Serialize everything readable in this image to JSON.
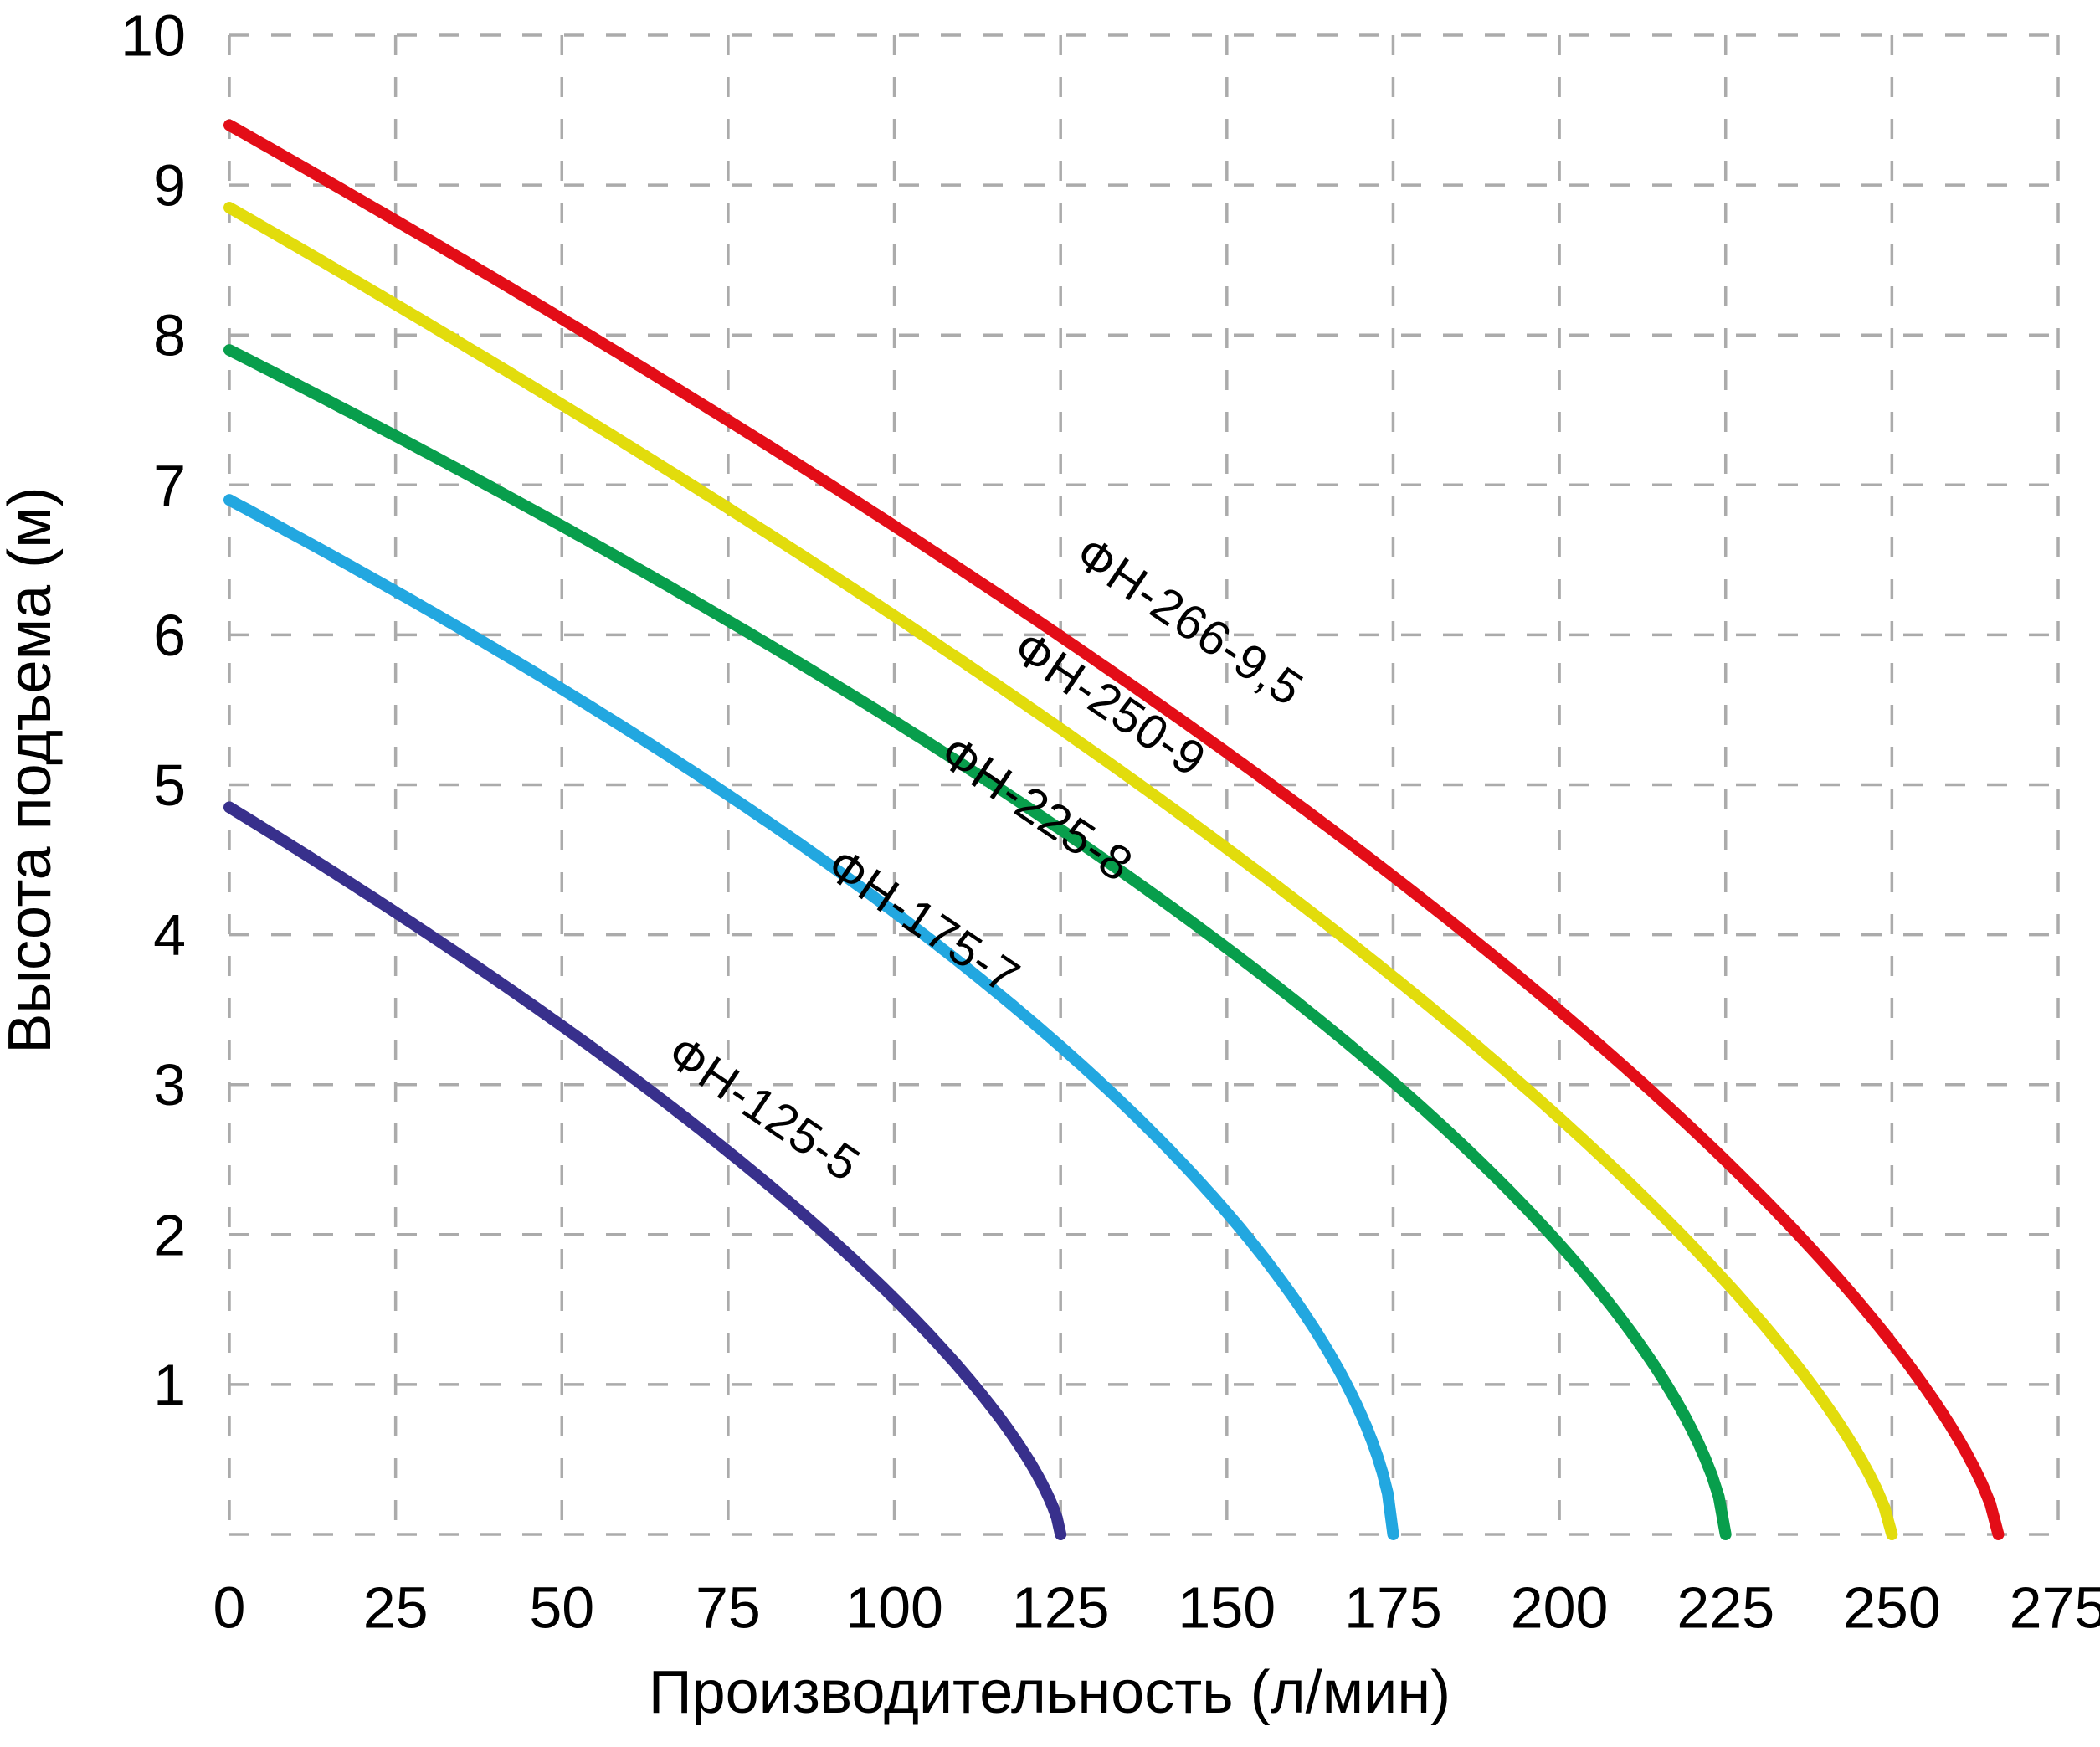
{
  "chart_data": {
    "type": "line",
    "title": "",
    "xlabel": "Производительность (л/мин)",
    "ylabel": "Высота подъема (м)",
    "xlim": [
      0,
      275
    ],
    "ylim": [
      0,
      10
    ],
    "x_ticks": [
      0,
      25,
      50,
      75,
      100,
      125,
      150,
      175,
      200,
      225,
      250,
      275
    ],
    "y_ticks": [
      1,
      2,
      3,
      4,
      5,
      6,
      7,
      8,
      9,
      10
    ],
    "grid": "dashed",
    "grid_color": "#ababab",
    "background_color": "#ffffff",
    "legend_position": "labels-on-curves",
    "series": [
      {
        "name": "ФН-266-9,5",
        "slug": "fn-266-9-5",
        "color": "#e30d17",
        "max_head_m": 9.4,
        "max_flow_lmin": 266,
        "curve_exponent": 0.71,
        "points": [
          [
            0,
            9.4
          ],
          [
            25,
            8.8
          ],
          [
            50,
            8.1
          ],
          [
            75,
            7.4
          ],
          [
            100,
            6.7
          ],
          [
            125,
            6.0
          ],
          [
            150,
            5.2
          ],
          [
            175,
            4.4
          ],
          [
            200,
            3.5
          ],
          [
            225,
            2.5
          ],
          [
            250,
            1.3
          ],
          [
            266,
            0
          ]
        ],
        "label": {
          "q": 143,
          "h": 6.0,
          "angle_deg": 34
        }
      },
      {
        "name": "ФН-250-9",
        "slug": "fn-250-9",
        "color": "#e2dc0c",
        "max_head_m": 8.85,
        "max_flow_lmin": 250,
        "curve_exponent": 0.72,
        "points": [
          [
            0,
            8.85
          ],
          [
            25,
            8.2
          ],
          [
            50,
            7.5
          ],
          [
            75,
            6.85
          ],
          [
            100,
            6.1
          ],
          [
            125,
            5.4
          ],
          [
            150,
            4.6
          ],
          [
            175,
            3.7
          ],
          [
            200,
            2.8
          ],
          [
            225,
            1.7
          ],
          [
            250,
            0
          ]
        ],
        "label": {
          "q": 131,
          "h": 5.45,
          "angle_deg": 34
        }
      },
      {
        "name": "ФН-225-8",
        "slug": "fn-225-8",
        "color": "#089e4c",
        "max_head_m": 7.9,
        "max_flow_lmin": 225,
        "curve_exponent": 0.64,
        "points": [
          [
            0,
            7.9
          ],
          [
            25,
            7.3
          ],
          [
            50,
            6.7
          ],
          [
            75,
            6.1
          ],
          [
            100,
            5.4
          ],
          [
            125,
            4.7
          ],
          [
            150,
            3.9
          ],
          [
            175,
            3.0
          ],
          [
            200,
            1.95
          ],
          [
            225,
            0
          ]
        ],
        "label": {
          "q": 120,
          "h": 4.75,
          "angle_deg": 34
        }
      },
      {
        "name": "ФН-175-7",
        "slug": "fn-175-7",
        "color": "#22a7e0",
        "max_head_m": 6.9,
        "max_flow_lmin": 175,
        "curve_exponent": 0.6,
        "points": [
          [
            0,
            6.9
          ],
          [
            25,
            6.3
          ],
          [
            50,
            5.65
          ],
          [
            75,
            4.95
          ],
          [
            100,
            4.15
          ],
          [
            125,
            3.25
          ],
          [
            150,
            2.15
          ],
          [
            175,
            0
          ]
        ],
        "label": {
          "q": 103,
          "h": 4.0,
          "angle_deg": 34
        }
      },
      {
        "name": "ФН-125-5",
        "slug": "fn-125-5",
        "color": "#38308c",
        "max_head_m": 4.85,
        "max_flow_lmin": 125,
        "curve_exponent": 0.7,
        "points": [
          [
            0,
            4.85
          ],
          [
            25,
            4.15
          ],
          [
            50,
            3.4
          ],
          [
            75,
            2.55
          ],
          [
            100,
            1.55
          ],
          [
            125,
            0
          ]
        ],
        "label": {
          "q": 79,
          "h": 2.75,
          "angle_deg": 34
        }
      }
    ]
  }
}
